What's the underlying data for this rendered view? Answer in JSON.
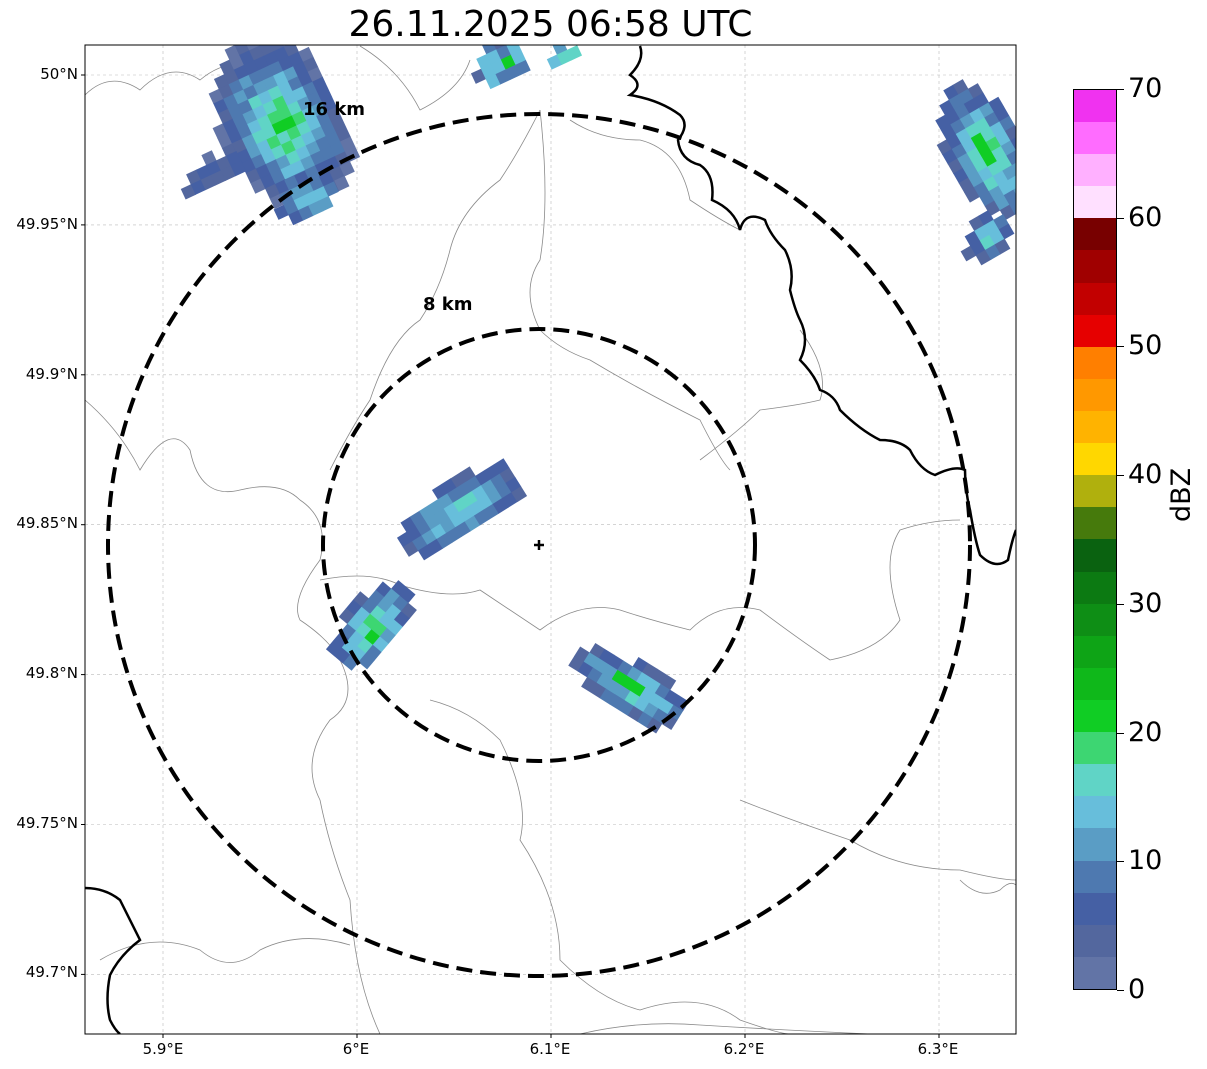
{
  "title": "26.11.2025 06:58 UTC",
  "map": {
    "x_ticks": [
      {
        "lon": 5.9,
        "label": "5.9°E"
      },
      {
        "lon": 6.0,
        "label": "6°E"
      },
      {
        "lon": 6.1,
        "label": "6.1°E"
      },
      {
        "lon": 6.2,
        "label": "6.2°E"
      },
      {
        "lon": 6.3,
        "label": "6.3°E"
      }
    ],
    "y_ticks": [
      {
        "lat": 50.0,
        "label": "50°N"
      },
      {
        "lat": 49.95,
        "label": "49.95°N"
      },
      {
        "lat": 49.9,
        "label": "49.9°N"
      },
      {
        "lat": 49.85,
        "label": "49.85°N"
      },
      {
        "lat": 49.8,
        "label": "49.8°N"
      },
      {
        "lat": 49.75,
        "label": "49.75°N"
      },
      {
        "lat": 49.7,
        "label": "49.7°N"
      }
    ],
    "radar_site": {
      "lon": 6.095,
      "lat": 49.844
    },
    "rings": [
      {
        "radius_km": 8,
        "label": "8 km"
      },
      {
        "radius_km": 16,
        "label": "16 km"
      }
    ],
    "gridlines": true
  },
  "colorbar": {
    "label": "dBZ",
    "min": 0,
    "max": 70,
    "ticks": [
      "0",
      "10",
      "20",
      "30",
      "40",
      "50",
      "60",
      "70"
    ],
    "colors": [
      "#6274a6",
      "#53679e",
      "#4560a4",
      "#4e79b0",
      "#5a9dc5",
      "#67bedb",
      "#60d4c6",
      "#3dd672",
      "#10cd24",
      "#0fb81a",
      "#0ea416",
      "#0e8e15",
      "#0c7a12",
      "#0a6210",
      "#467a0c",
      "#b0b00d",
      "#ffd700",
      "#ffb300",
      "#ff9800",
      "#ff7f00",
      "#e60000",
      "#c20000",
      "#a00000",
      "#780000",
      "#ffe0ff",
      "#ffb0ff",
      "#ff6cff",
      "#f032f0"
    ]
  }
}
